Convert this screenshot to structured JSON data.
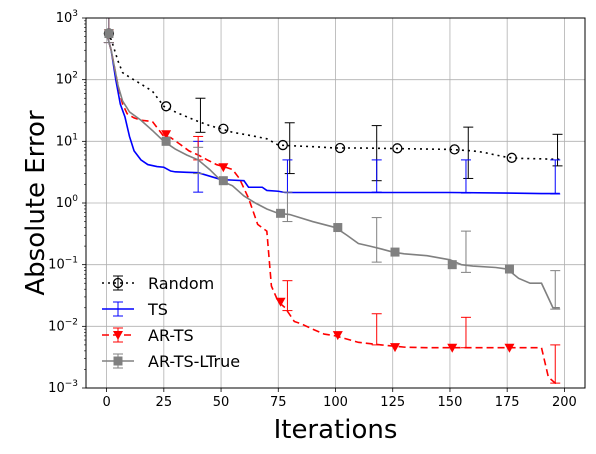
{
  "chart_data": {
    "type": "line",
    "xlabel": "Iterations",
    "ylabel": "Absolute Error",
    "xlim": [
      -9,
      209
    ],
    "ylim": [
      0.001,
      1000
    ],
    "yscale": "log",
    "grid": true,
    "legend_placement": "lower-left",
    "x_ticks": [
      0,
      25,
      50,
      75,
      100,
      125,
      150,
      175,
      200
    ],
    "y_ticks": [
      {
        "value": 0.001,
        "base": "10",
        "exp": "−3"
      },
      {
        "value": 0.01,
        "base": "10",
        "exp": "−2"
      },
      {
        "value": 0.1,
        "base": "10",
        "exp": "−1"
      },
      {
        "value": 1,
        "base": "10",
        "exp": "0"
      },
      {
        "value": 10,
        "base": "10",
        "exp": "1"
      },
      {
        "value": 100,
        "base": "10",
        "exp": "2"
      },
      {
        "value": 1000,
        "base": "10",
        "exp": "3"
      }
    ],
    "series": [
      {
        "name": "Random",
        "color": "#000000",
        "dash": "dotted",
        "marker": "open-circle",
        "x": [
          0,
          2,
          5,
          7,
          10,
          15,
          20,
          25,
          30,
          35,
          40,
          45,
          50,
          55,
          60,
          65,
          70,
          75,
          80,
          90,
          100,
          110,
          120,
          130,
          140,
          150,
          160,
          165,
          170,
          175,
          180,
          190,
          198
        ],
        "y": [
          560,
          450,
          200,
          130,
          110,
          85,
          65,
          37,
          30,
          25,
          21,
          18,
          16,
          14,
          13,
          12,
          11,
          8.7,
          8.5,
          8.2,
          7.8,
          7.8,
          7.7,
          7.6,
          7.5,
          7.4,
          7.0,
          6.6,
          6.0,
          5.5,
          5.3,
          5.2,
          5.1
        ],
        "marker_x": [
          1,
          26,
          51,
          77,
          102,
          127,
          152,
          177
        ],
        "marker_y": [
          560,
          37,
          16,
          8.7,
          7.8,
          7.7,
          7.4,
          5.4
        ],
        "err_x": [
          1,
          41,
          80,
          118,
          158,
          197
        ],
        "err_y": [
          560,
          28,
          9,
          8,
          7.5,
          5.3
        ],
        "err_low": [
          400,
          14,
          3,
          2.3,
          2.5,
          4
        ],
        "err_high": [
          1000,
          50,
          20,
          18,
          17,
          13
        ]
      },
      {
        "name": "TS",
        "color": "#0000ff",
        "dash": "solid",
        "marker": "none",
        "x": [
          0,
          2,
          4,
          6,
          8,
          10,
          12,
          15,
          18,
          22,
          25,
          28,
          30,
          35,
          40,
          50,
          55,
          60,
          62,
          68,
          70,
          75,
          78,
          100,
          125,
          150,
          175,
          190,
          198
        ],
        "y": [
          560,
          300,
          100,
          40,
          25,
          12,
          7,
          5,
          4.2,
          3.9,
          3.8,
          3.3,
          3.2,
          3.15,
          3.1,
          2.4,
          2.35,
          2.3,
          1.8,
          1.8,
          1.6,
          1.55,
          1.48,
          1.48,
          1.48,
          1.48,
          1.45,
          1.42,
          1.42
        ],
        "err_x": [
          1,
          40,
          79,
          118,
          157,
          196
        ],
        "err_y": [
          560,
          3.1,
          1.48,
          1.48,
          1.48,
          1.42
        ],
        "err_low": [
          400,
          1.5,
          1.5,
          1.5,
          1.45,
          1.4
        ],
        "err_high": [
          1000,
          10,
          5,
          5,
          5,
          5
        ]
      },
      {
        "name": "AR-TS",
        "color": "#ff0000",
        "dash": "dashed",
        "marker": "filled-triangle-down",
        "x": [
          0,
          2,
          5,
          7,
          9,
          12,
          15,
          20,
          25,
          28,
          32,
          36,
          40,
          44,
          48,
          52,
          55,
          58,
          62,
          66,
          70,
          72,
          75,
          78,
          82,
          85,
          90,
          95,
          100,
          110,
          120,
          130,
          140,
          150,
          160,
          175,
          185,
          190,
          193,
          196,
          198
        ],
        "y": [
          560,
          300,
          80,
          40,
          28,
          24,
          22,
          21,
          12,
          11.5,
          9,
          7,
          6,
          5,
          4.2,
          3.8,
          3.5,
          2.5,
          1.2,
          0.45,
          0.35,
          0.045,
          0.025,
          0.02,
          0.012,
          0.011,
          0.009,
          0.0075,
          0.007,
          0.0055,
          0.005,
          0.0046,
          0.0045,
          0.0045,
          0.0045,
          0.0045,
          0.0045,
          0.0045,
          0.0015,
          0.0012,
          0.0012
        ],
        "marker_x": [
          1,
          26,
          51,
          76,
          101,
          126,
          151,
          176
        ],
        "marker_y": [
          560,
          13,
          3.8,
          0.025,
          0.0072,
          0.0046,
          0.0045,
          0.0045
        ],
        "err_x": [
          1,
          40,
          79,
          118,
          157,
          196
        ],
        "err_y": [
          560,
          6,
          0.02,
          0.005,
          0.0045,
          0.0012
        ],
        "err_low": [
          400,
          5,
          0.018,
          0.005,
          0.0045,
          0.0012
        ],
        "err_high": [
          1000,
          12,
          0.055,
          0.016,
          0.014,
          0.005
        ]
      },
      {
        "name": "AR-TS-LTrue",
        "color": "#808080",
        "dash": "solid",
        "marker": "filled-square",
        "x": [
          0,
          2,
          5,
          7,
          10,
          15,
          20,
          25,
          30,
          35,
          40,
          45,
          50,
          55,
          60,
          65,
          70,
          75,
          80,
          90,
          100,
          105,
          110,
          115,
          120,
          125,
          130,
          140,
          150,
          155,
          160,
          170,
          175,
          180,
          185,
          190,
          195,
          198
        ],
        "y": [
          560,
          300,
          80,
          45,
          30,
          22,
          15,
          10,
          7.5,
          6,
          5,
          3.5,
          2.3,
          1.9,
          1.3,
          1.0,
          0.8,
          0.68,
          0.65,
          0.5,
          0.4,
          0.3,
          0.22,
          0.2,
          0.18,
          0.16,
          0.15,
          0.14,
          0.12,
          0.1,
          0.095,
          0.09,
          0.085,
          0.06,
          0.05,
          0.05,
          0.02,
          0.02
        ],
        "marker_x": [
          1,
          26,
          51,
          76,
          101,
          126,
          151,
          176
        ],
        "marker_y": [
          560,
          10,
          2.3,
          0.68,
          0.4,
          0.16,
          0.1,
          0.085
        ],
        "err_x": [
          1,
          40,
          79,
          118,
          157,
          196
        ],
        "err_y": [
          560,
          5,
          0.65,
          0.2,
          0.095,
          0.02
        ],
        "err_low": [
          400,
          3,
          0.5,
          0.11,
          0.075,
          0.019
        ],
        "err_high": [
          1000,
          8,
          1.5,
          0.58,
          0.35,
          0.08
        ]
      }
    ]
  }
}
